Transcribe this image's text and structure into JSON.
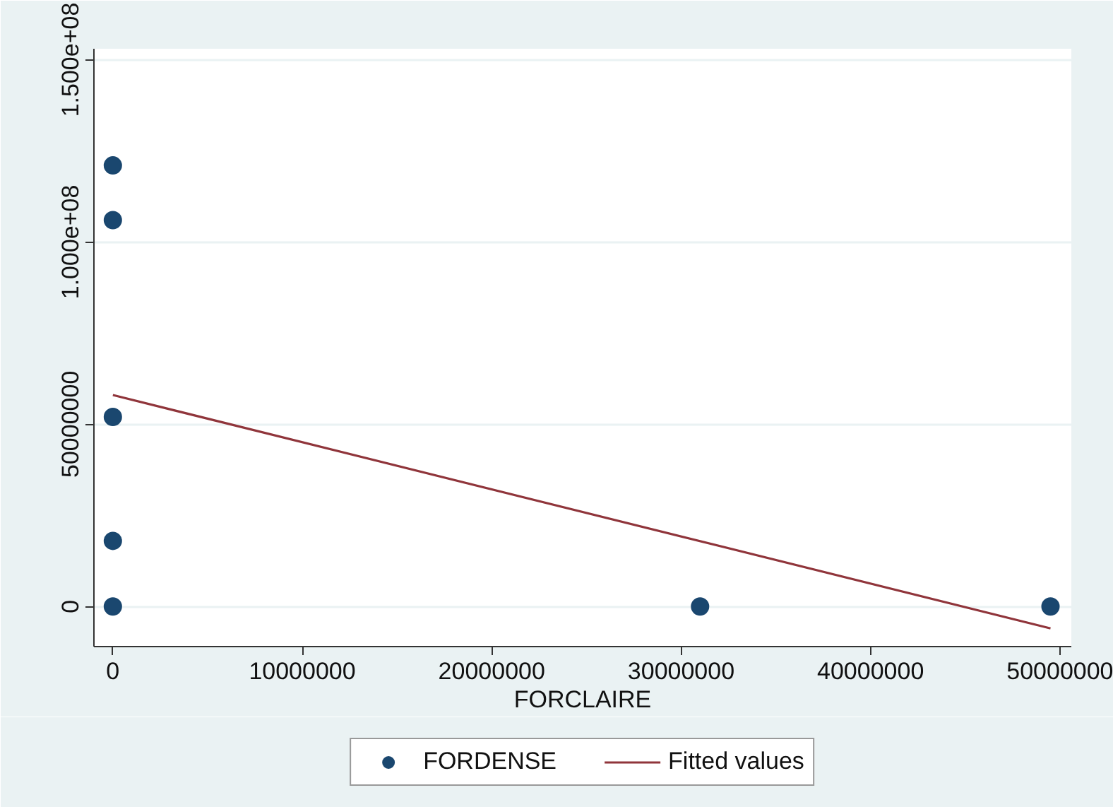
{
  "chart_data": {
    "type": "scatter",
    "xlabel": "FORCLAIRE",
    "xlim": [
      -1000000,
      50600000
    ],
    "ylim": [
      -11000000,
      153000000
    ],
    "xticks": [
      0,
      10000000,
      20000000,
      30000000,
      40000000,
      50000000
    ],
    "yticks": [
      0,
      50000000,
      {
        "value": 100000000,
        "label": "1.000e+08"
      },
      {
        "value": 150000000,
        "label": "1.500e+08"
      }
    ],
    "grid": "y",
    "legend": "bottom",
    "series": [
      {
        "name": "FORDENSE",
        "color": "#1a476f",
        "marker": "circle",
        "x": [
          0,
          0,
          0,
          0,
          0,
          31000000,
          49500000
        ],
        "values": [
          121000000,
          106000000,
          52000000,
          18000000,
          0,
          0,
          0
        ]
      },
      {
        "name": "Fitted values",
        "type": "line",
        "color": "#90353b",
        "x": [
          0,
          49500000
        ],
        "values": [
          58000000,
          -6000000
        ]
      }
    ]
  }
}
